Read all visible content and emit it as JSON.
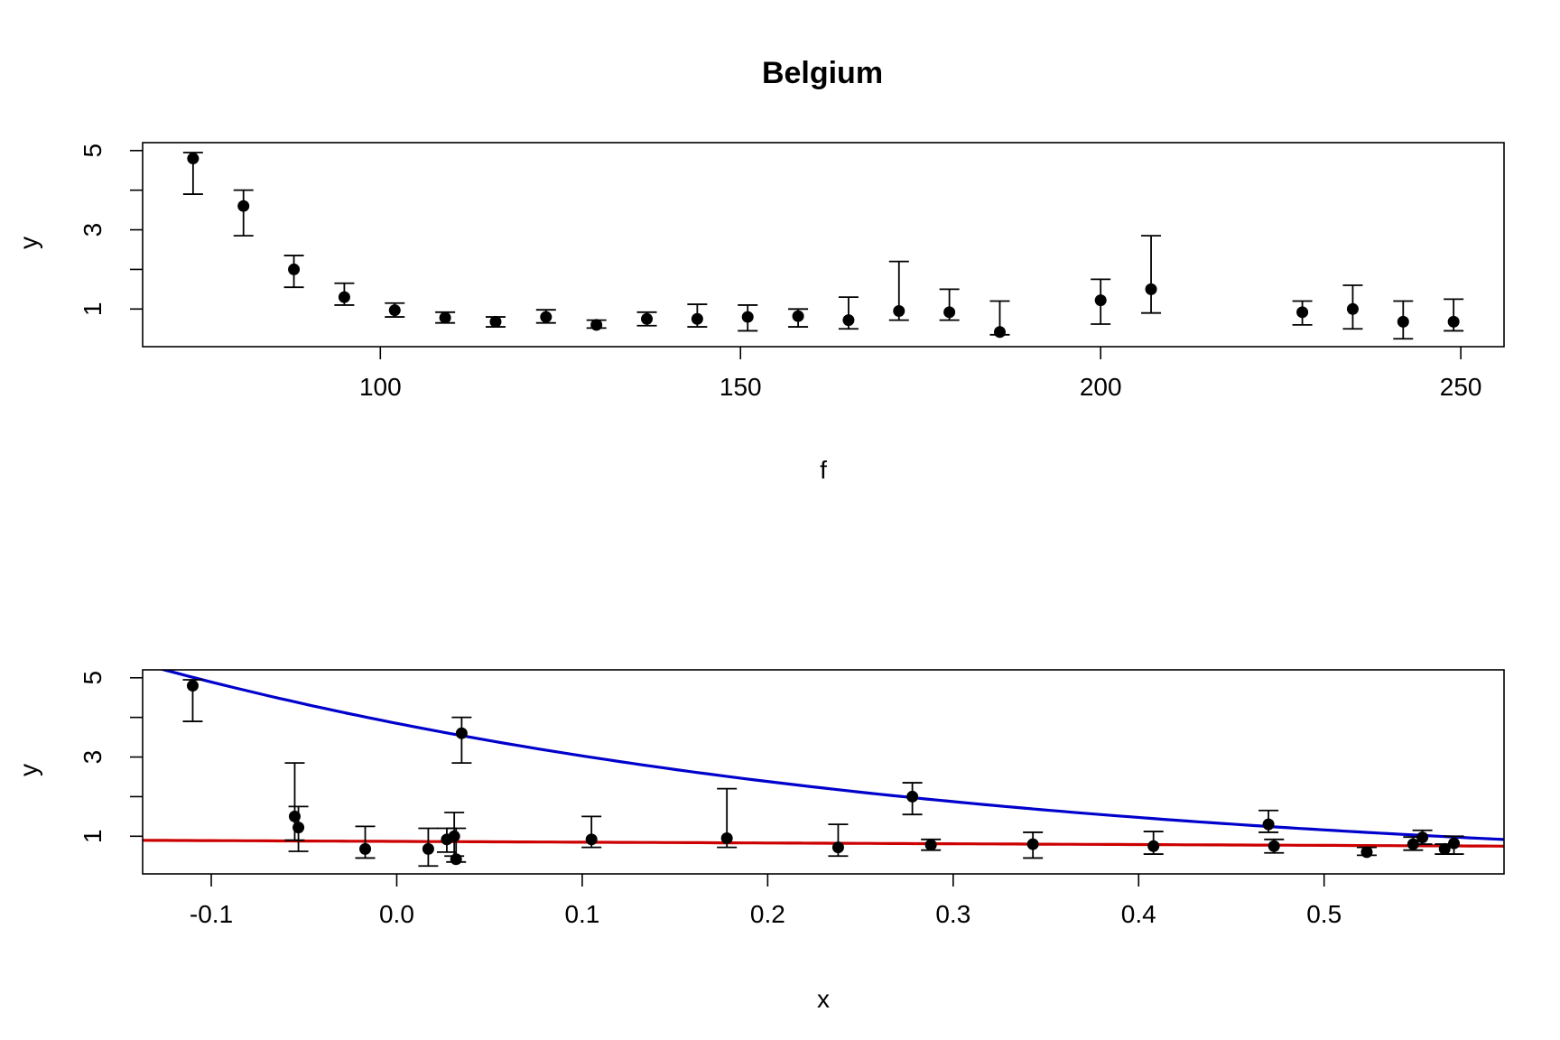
{
  "chart_data": [
    {
      "type": "scatter",
      "title": "Belgium",
      "xlabel": "f",
      "ylabel": "y",
      "xlim": [
        67,
        256
      ],
      "ylim": [
        0.05,
        5.2
      ],
      "xticks": [
        100,
        150,
        200,
        250
      ],
      "yticks": [
        1,
        3,
        5
      ],
      "ytick_minor": [
        2,
        4
      ],
      "points": [
        {
          "x": 74,
          "y": 4.8,
          "lo": 3.9,
          "hi": 4.95
        },
        {
          "x": 81,
          "y": 3.6,
          "lo": 2.85,
          "hi": 4.0
        },
        {
          "x": 88,
          "y": 2.0,
          "lo": 1.55,
          "hi": 2.35
        },
        {
          "x": 95,
          "y": 1.3,
          "lo": 1.1,
          "hi": 1.65
        },
        {
          "x": 102,
          "y": 0.97,
          "lo": 0.8,
          "hi": 1.15
        },
        {
          "x": 109,
          "y": 0.78,
          "lo": 0.65,
          "hi": 0.92
        },
        {
          "x": 116,
          "y": 0.68,
          "lo": 0.55,
          "hi": 0.8
        },
        {
          "x": 123,
          "y": 0.8,
          "lo": 0.65,
          "hi": 0.98
        },
        {
          "x": 130,
          "y": 0.6,
          "lo": 0.52,
          "hi": 0.72
        },
        {
          "x": 137,
          "y": 0.75,
          "lo": 0.58,
          "hi": 0.92
        },
        {
          "x": 144,
          "y": 0.75,
          "lo": 0.55,
          "hi": 1.12
        },
        {
          "x": 151,
          "y": 0.8,
          "lo": 0.45,
          "hi": 1.1
        },
        {
          "x": 158,
          "y": 0.82,
          "lo": 0.55,
          "hi": 1.0
        },
        {
          "x": 165,
          "y": 0.72,
          "lo": 0.5,
          "hi": 1.3
        },
        {
          "x": 172,
          "y": 0.95,
          "lo": 0.72,
          "hi": 2.2
        },
        {
          "x": 179,
          "y": 0.92,
          "lo": 0.72,
          "hi": 1.5
        },
        {
          "x": 186,
          "y": 0.42,
          "lo": 0.35,
          "hi": 1.2
        },
        {
          "x": 200,
          "y": 1.22,
          "lo": 0.62,
          "hi": 1.75
        },
        {
          "x": 207,
          "y": 1.5,
          "lo": 0.9,
          "hi": 2.85
        },
        {
          "x": 228,
          "y": 0.92,
          "lo": 0.6,
          "hi": 1.2
        },
        {
          "x": 235,
          "y": 1.0,
          "lo": 0.5,
          "hi": 1.6
        },
        {
          "x": 242,
          "y": 0.68,
          "lo": 0.25,
          "hi": 1.2
        },
        {
          "x": 249,
          "y": 0.68,
          "lo": 0.45,
          "hi": 1.25
        }
      ]
    },
    {
      "type": "scatter",
      "title": "",
      "xlabel": "x",
      "ylabel": "y",
      "xlim": [
        -0.137,
        0.597
      ],
      "ylim": [
        0.05,
        5.2
      ],
      "xticks": [
        -0.1,
        0.0,
        0.1,
        0.2,
        0.3,
        0.4,
        0.5
      ],
      "xtick_labels": [
        "-0.1",
        "0.0",
        "0.1",
        "0.2",
        "0.3",
        "0.4",
        "0.5"
      ],
      "yticks": [
        1,
        3,
        5
      ],
      "ytick_minor": [
        2,
        4
      ],
      "points": [
        {
          "x": -0.11,
          "y": 4.8,
          "lo": 3.9,
          "hi": 4.95
        },
        {
          "x": 0.035,
          "y": 3.6,
          "lo": 2.85,
          "hi": 4.0
        },
        {
          "x": 0.278,
          "y": 2.0,
          "lo": 1.55,
          "hi": 2.35
        },
        {
          "x": 0.47,
          "y": 1.3,
          "lo": 1.1,
          "hi": 1.65
        },
        {
          "x": 0.553,
          "y": 0.97,
          "lo": 0.8,
          "hi": 1.15
        },
        {
          "x": 0.288,
          "y": 0.78,
          "lo": 0.65,
          "hi": 0.92
        },
        {
          "x": 0.565,
          "y": 0.68,
          "lo": 0.55,
          "hi": 0.8
        },
        {
          "x": 0.548,
          "y": 0.8,
          "lo": 0.65,
          "hi": 0.98
        },
        {
          "x": 0.523,
          "y": 0.6,
          "lo": 0.52,
          "hi": 0.72
        },
        {
          "x": 0.473,
          "y": 0.75,
          "lo": 0.58,
          "hi": 0.92
        },
        {
          "x": 0.408,
          "y": 0.75,
          "lo": 0.55,
          "hi": 1.12
        },
        {
          "x": 0.343,
          "y": 0.8,
          "lo": 0.45,
          "hi": 1.1
        },
        {
          "x": 0.57,
          "y": 0.82,
          "lo": 0.55,
          "hi": 1.0
        },
        {
          "x": 0.238,
          "y": 0.72,
          "lo": 0.5,
          "hi": 1.3
        },
        {
          "x": 0.178,
          "y": 0.95,
          "lo": 0.72,
          "hi": 2.2
        },
        {
          "x": 0.105,
          "y": 0.92,
          "lo": 0.72,
          "hi": 1.5
        },
        {
          "x": 0.032,
          "y": 0.42,
          "lo": 0.35,
          "hi": 1.2
        },
        {
          "x": -0.053,
          "y": 1.22,
          "lo": 0.62,
          "hi": 1.75
        },
        {
          "x": -0.055,
          "y": 1.5,
          "lo": 0.9,
          "hi": 2.85
        },
        {
          "x": 0.027,
          "y": 0.92,
          "lo": 0.6,
          "hi": 1.2
        },
        {
          "x": 0.031,
          "y": 1.0,
          "lo": 0.5,
          "hi": 1.6
        },
        {
          "x": 0.017,
          "y": 0.68,
          "lo": 0.25,
          "hi": 1.2
        },
        {
          "x": -0.017,
          "y": 0.68,
          "lo": 0.45,
          "hi": 1.25
        }
      ],
      "curves": [
        {
          "name": "blue-curve",
          "color": "#0000cc",
          "model": "exponential",
          "a": 3.85,
          "b": -2.4
        },
        {
          "name": "red-curve",
          "color": "#cc0000",
          "model": "linear",
          "intercept": 0.87,
          "slope": -0.2
        }
      ]
    }
  ]
}
